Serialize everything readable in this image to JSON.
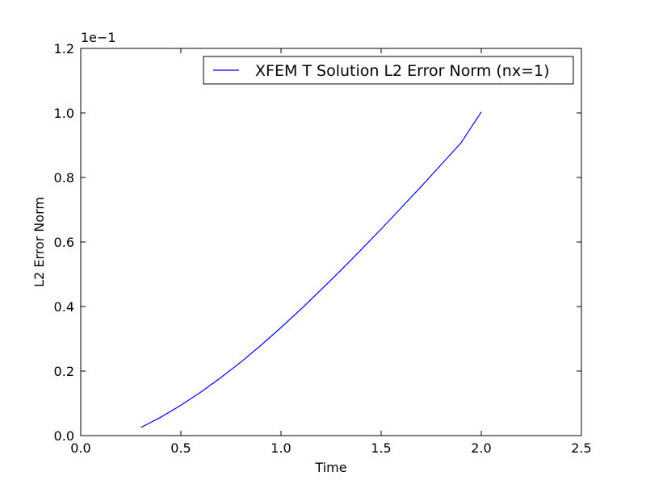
{
  "chart_data": {
    "type": "line",
    "title": "",
    "xlabel": "Time",
    "ylabel": "L2 Error Norm",
    "offset_text": "1e−1",
    "xlim": [
      0.0,
      2.5
    ],
    "ylim": [
      0.0,
      1.2
    ],
    "xticks": [
      "0.0",
      "0.5",
      "1.0",
      "1.5",
      "2.0",
      "2.5"
    ],
    "yticks": [
      "0.0",
      "0.2",
      "0.4",
      "0.6",
      "0.8",
      "1.0",
      "1.2"
    ],
    "grid": false,
    "legend_position": "top-right",
    "series": [
      {
        "name": "XFEM T Solution L2 Error Norm (nx=1)",
        "color": "#0000ff",
        "x": [
          0.3,
          0.4,
          0.5,
          0.6,
          0.7,
          0.8,
          0.9,
          1.0,
          1.1,
          1.2,
          1.3,
          1.4,
          1.5,
          1.6,
          1.7,
          1.8,
          1.9,
          2.0
        ],
        "y": [
          0.025,
          0.057,
          0.094,
          0.135,
          0.18,
          0.228,
          0.28,
          0.335,
          0.392,
          0.452,
          0.513,
          0.576,
          0.64,
          0.706,
          0.772,
          0.84,
          0.908,
          1.003
        ]
      }
    ]
  }
}
